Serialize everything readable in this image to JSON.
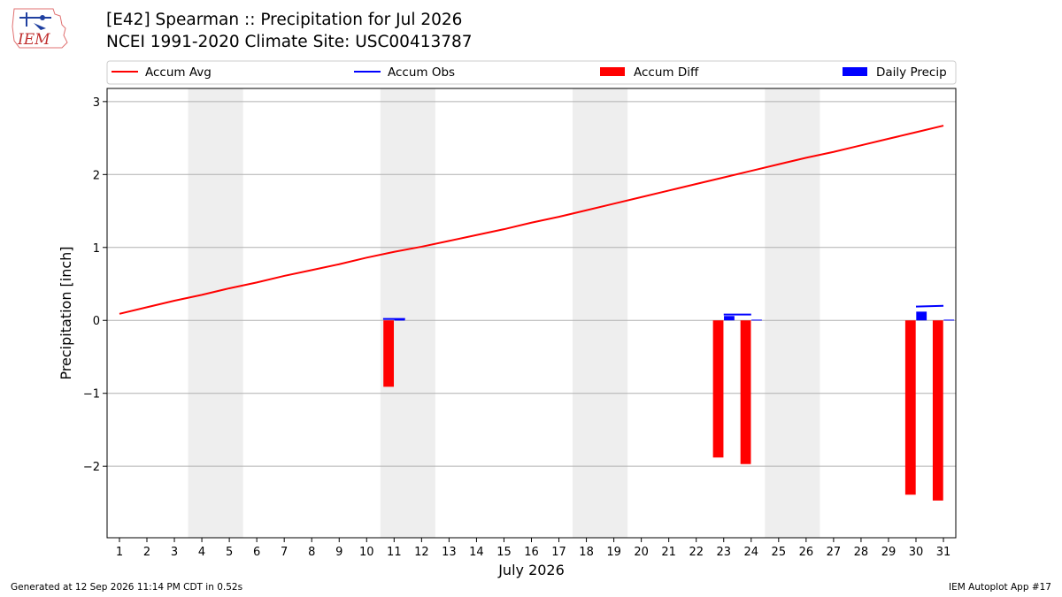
{
  "header": {
    "title_line1": "[E42] Spearman :: Precipitation for Jul 2026",
    "title_line2": "NCEI 1991-2020 Climate Site: USC00413787",
    "logo_text": "IEM"
  },
  "footer": {
    "left": "Generated at 12 Sep 2026 11:14 PM CDT in 0.52s",
    "right": "IEM Autoplot App #17"
  },
  "chart_data": {
    "type": "bar",
    "xlabel": "July 2026",
    "ylabel": "Precipitation [inch]",
    "x": [
      1,
      2,
      3,
      4,
      5,
      6,
      7,
      8,
      9,
      10,
      11,
      12,
      13,
      14,
      15,
      16,
      17,
      18,
      19,
      20,
      21,
      22,
      23,
      24,
      25,
      26,
      27,
      28,
      29,
      30,
      31
    ],
    "xticks": [
      "1",
      "2",
      "3",
      "4",
      "5",
      "6",
      "7",
      "8",
      "9",
      "10",
      "11",
      "12",
      "13",
      "14",
      "15",
      "16",
      "17",
      "18",
      "19",
      "20",
      "21",
      "22",
      "23",
      "24",
      "25",
      "26",
      "27",
      "28",
      "29",
      "30",
      "31"
    ],
    "yticks": [
      3,
      2,
      1,
      0,
      -1,
      -2
    ],
    "ytick_labels": [
      "3",
      "2",
      "1",
      "0",
      "−1",
      "−2"
    ],
    "ylim": [
      -2.98,
      3.18
    ],
    "xlim": [
      0.55,
      31.45
    ],
    "weekend_shading": [
      [
        3.5,
        5.5
      ],
      [
        10.5,
        12.5
      ],
      [
        17.5,
        19.5
      ],
      [
        24.5,
        26.5
      ]
    ],
    "grid": "horizontal",
    "legend_placement": "top, above plot",
    "series": [
      {
        "name": "Accum Avg",
        "kind": "line",
        "color": "#ff0000",
        "x": [
          1,
          2,
          3,
          4,
          5,
          6,
          7,
          8,
          9,
          10,
          11,
          12,
          13,
          14,
          15,
          16,
          17,
          18,
          19,
          20,
          21,
          22,
          23,
          24,
          25,
          26,
          27,
          28,
          29,
          30,
          31
        ],
        "values": [
          0.09,
          0.18,
          0.27,
          0.35,
          0.44,
          0.52,
          0.61,
          0.69,
          0.77,
          0.86,
          0.94,
          1.01,
          1.09,
          1.17,
          1.25,
          1.34,
          1.42,
          1.51,
          1.6,
          1.69,
          1.78,
          1.87,
          1.96,
          2.05,
          2.14,
          2.23,
          2.31,
          2.4,
          2.49,
          2.58,
          2.67
        ]
      },
      {
        "name": "Accum Obs",
        "kind": "step-segments",
        "color": "#0000ff",
        "x": [
          11,
          23,
          24,
          30,
          31
        ],
        "values": [
          0.02,
          0.08,
          0.08,
          0.19,
          0.2
        ]
      },
      {
        "name": "Accum Diff",
        "kind": "bar",
        "color": "#ff0000",
        "x": [
          10.8,
          22.8,
          23.8,
          29.8,
          30.8
        ],
        "values": [
          -0.91,
          -1.88,
          -1.97,
          -2.39,
          -2.47
        ]
      },
      {
        "name": "Daily Precip",
        "kind": "bar",
        "color": "#0000ff",
        "x": [
          11.2,
          23.2,
          24.2,
          30.2,
          31.2
        ],
        "values": [
          0.01,
          0.06,
          0.01,
          0.12,
          0.01
        ]
      }
    ]
  }
}
